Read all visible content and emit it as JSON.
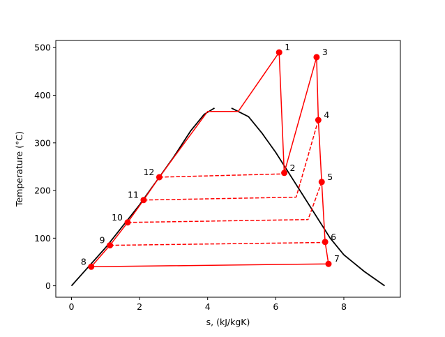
{
  "chart_data": {
    "type": "line",
    "title": "",
    "xlabel": "s, (kJ/kgK)",
    "ylabel": "Temperature (°C)",
    "xlim": [
      -0.46,
      9.66
    ],
    "ylim": [
      -24,
      515
    ],
    "xticks": [
      0,
      2,
      4,
      6,
      8
    ],
    "yticks": [
      0,
      100,
      200,
      300,
      400,
      500
    ],
    "grid": false,
    "colors": {
      "dome": "#000000",
      "cycle": "#ff0000"
    },
    "saturation_dome": {
      "liquid": {
        "x": [
          0,
          0.5,
          1.0,
          1.5,
          2.0,
          2.5,
          3.0,
          3.5,
          3.9,
          4.2
        ],
        "y": [
          0,
          40,
          80,
          125,
          170,
          220,
          270,
          325,
          360,
          373
        ]
      },
      "vapor": {
        "x": [
          4.7,
          5.2,
          5.6,
          6.0,
          6.4,
          6.8,
          7.2,
          7.6,
          8.0,
          8.6,
          9.2
        ],
        "y": [
          373,
          355,
          320,
          280,
          235,
          190,
          145,
          100,
          65,
          30,
          0
        ]
      }
    },
    "points": [
      {
        "label": "1",
        "x": 6.1,
        "y": 490
      },
      {
        "label": "2",
        "x": 6.25,
        "y": 237
      },
      {
        "label": "3",
        "x": 7.2,
        "y": 480
      },
      {
        "label": "4",
        "x": 7.25,
        "y": 348
      },
      {
        "label": "5",
        "x": 7.35,
        "y": 218
      },
      {
        "label": "6",
        "x": 7.45,
        "y": 92
      },
      {
        "label": "7",
        "x": 7.55,
        "y": 46
      },
      {
        "label": "8",
        "x": 0.58,
        "y": 40
      },
      {
        "label": "9",
        "x": 1.13,
        "y": 85
      },
      {
        "label": "10",
        "x": 1.65,
        "y": 133
      },
      {
        "label": "11",
        "x": 2.12,
        "y": 180
      },
      {
        "label": "12",
        "x": 2.58,
        "y": 228
      }
    ],
    "solid_lines": [
      {
        "x": [
          0.58,
          1.13,
          1.65,
          2.12,
          2.58,
          4.0,
          4.9,
          6.1,
          6.25,
          7.2,
          7.25,
          7.35,
          7.45,
          7.55,
          0.58
        ],
        "y": [
          40,
          85,
          133,
          180,
          228,
          366,
          366,
          490,
          237,
          480,
          348,
          218,
          92,
          46,
          40
        ]
      }
    ],
    "dashed_lines": [
      {
        "x": [
          2.58,
          6.25
        ],
        "y": [
          228,
          235
        ]
      },
      {
        "x": [
          2.12,
          6.6
        ],
        "y": [
          180,
          186
        ]
      },
      {
        "x": [
          1.65,
          6.95
        ],
        "y": [
          133,
          139
        ]
      },
      {
        "x": [
          1.13,
          7.45
        ],
        "y": [
          85,
          91
        ]
      },
      {
        "x": [
          7.25,
          6.6
        ],
        "y": [
          348,
          186
        ]
      },
      {
        "x": [
          7.35,
          6.95
        ],
        "y": [
          218,
          139
        ]
      }
    ]
  }
}
